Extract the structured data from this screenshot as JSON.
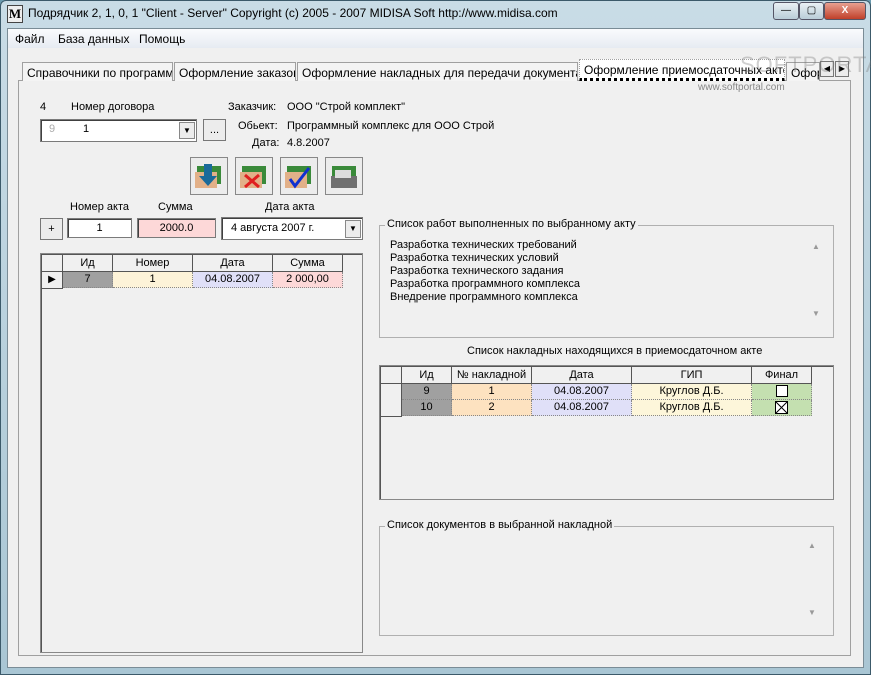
{
  "window": {
    "title": "Подрядчик 2, 1, 0, 1 \"Client - Server\" Copyright (c) 2005 - 2007 MIDISA Soft http://www.midisa.com",
    "icon": "M",
    "min": "—",
    "max": "▢",
    "close": "X"
  },
  "menu": [
    "Файл",
    "База данных",
    "Помощь"
  ],
  "tabs": [
    "Справочники по программе",
    "Оформление заказов",
    "Оформление накладных для передачи документации",
    "Оформление приемосдаточных актов",
    "Офор"
  ],
  "watermark": {
    "logo": "SOFTPORTAL",
    "url": "www.softportal.com"
  },
  "contract": {
    "id": "4",
    "label": "Номер договора",
    "combo_id": "9",
    "combo_value": "1",
    "browse": "..."
  },
  "info": {
    "customer_label": "Заказчик:",
    "customer": "ООО \"Строй комплект\"",
    "object_label": "Обьект:",
    "object": "Программный комплекс для ООО Строй",
    "date_label": "Дата:",
    "date": "4.8.2007"
  },
  "toolbar": [
    "import-icon",
    "delete-icon",
    "confirm-icon",
    "print-icon"
  ],
  "act": {
    "add": "+",
    "number_label": "Номер акта",
    "number": "1",
    "sum_label": "Сумма",
    "sum": "2000.0",
    "date_label": "Дата акта",
    "date": "4  августа  2007 г."
  },
  "acts_table": {
    "columns": [
      "Ид",
      "Номер",
      "Дата",
      "Сумма"
    ],
    "rows": [
      [
        "7",
        "1",
        "04.08.2007",
        "2 000,00"
      ]
    ]
  },
  "works": {
    "title": "Список работ выполненных по выбранному акту",
    "items": [
      "Разработка технических требований",
      "Разработка технических условий",
      "Разработка технического задания",
      "Разработка программного комплекса",
      "Внедрение программного комплекса"
    ]
  },
  "invoices": {
    "title": "Список накладных находящихся в приемосдаточном акте",
    "columns": [
      "Ид",
      "№ накладной",
      "Дата",
      "ГИП",
      "Финал"
    ],
    "rows": [
      {
        "id": "9",
        "num": "1",
        "date": "04.08.2007",
        "gip": "Круглов Д.Б.",
        "final": false
      },
      {
        "id": "10",
        "num": "2",
        "date": "04.08.2007",
        "gip": "Круглов Д.Б.",
        "final": true
      }
    ]
  },
  "documents": {
    "title": "Список документов в выбранной накладной"
  },
  "colors": {
    "id": "#a0a0a0",
    "number": "#fdf3d8",
    "date": "#e0e0f8",
    "sum": "#fdd8d8",
    "invnum": "#fde2c0",
    "gip": "#fdf6da",
    "final": "#c4e0b0"
  }
}
